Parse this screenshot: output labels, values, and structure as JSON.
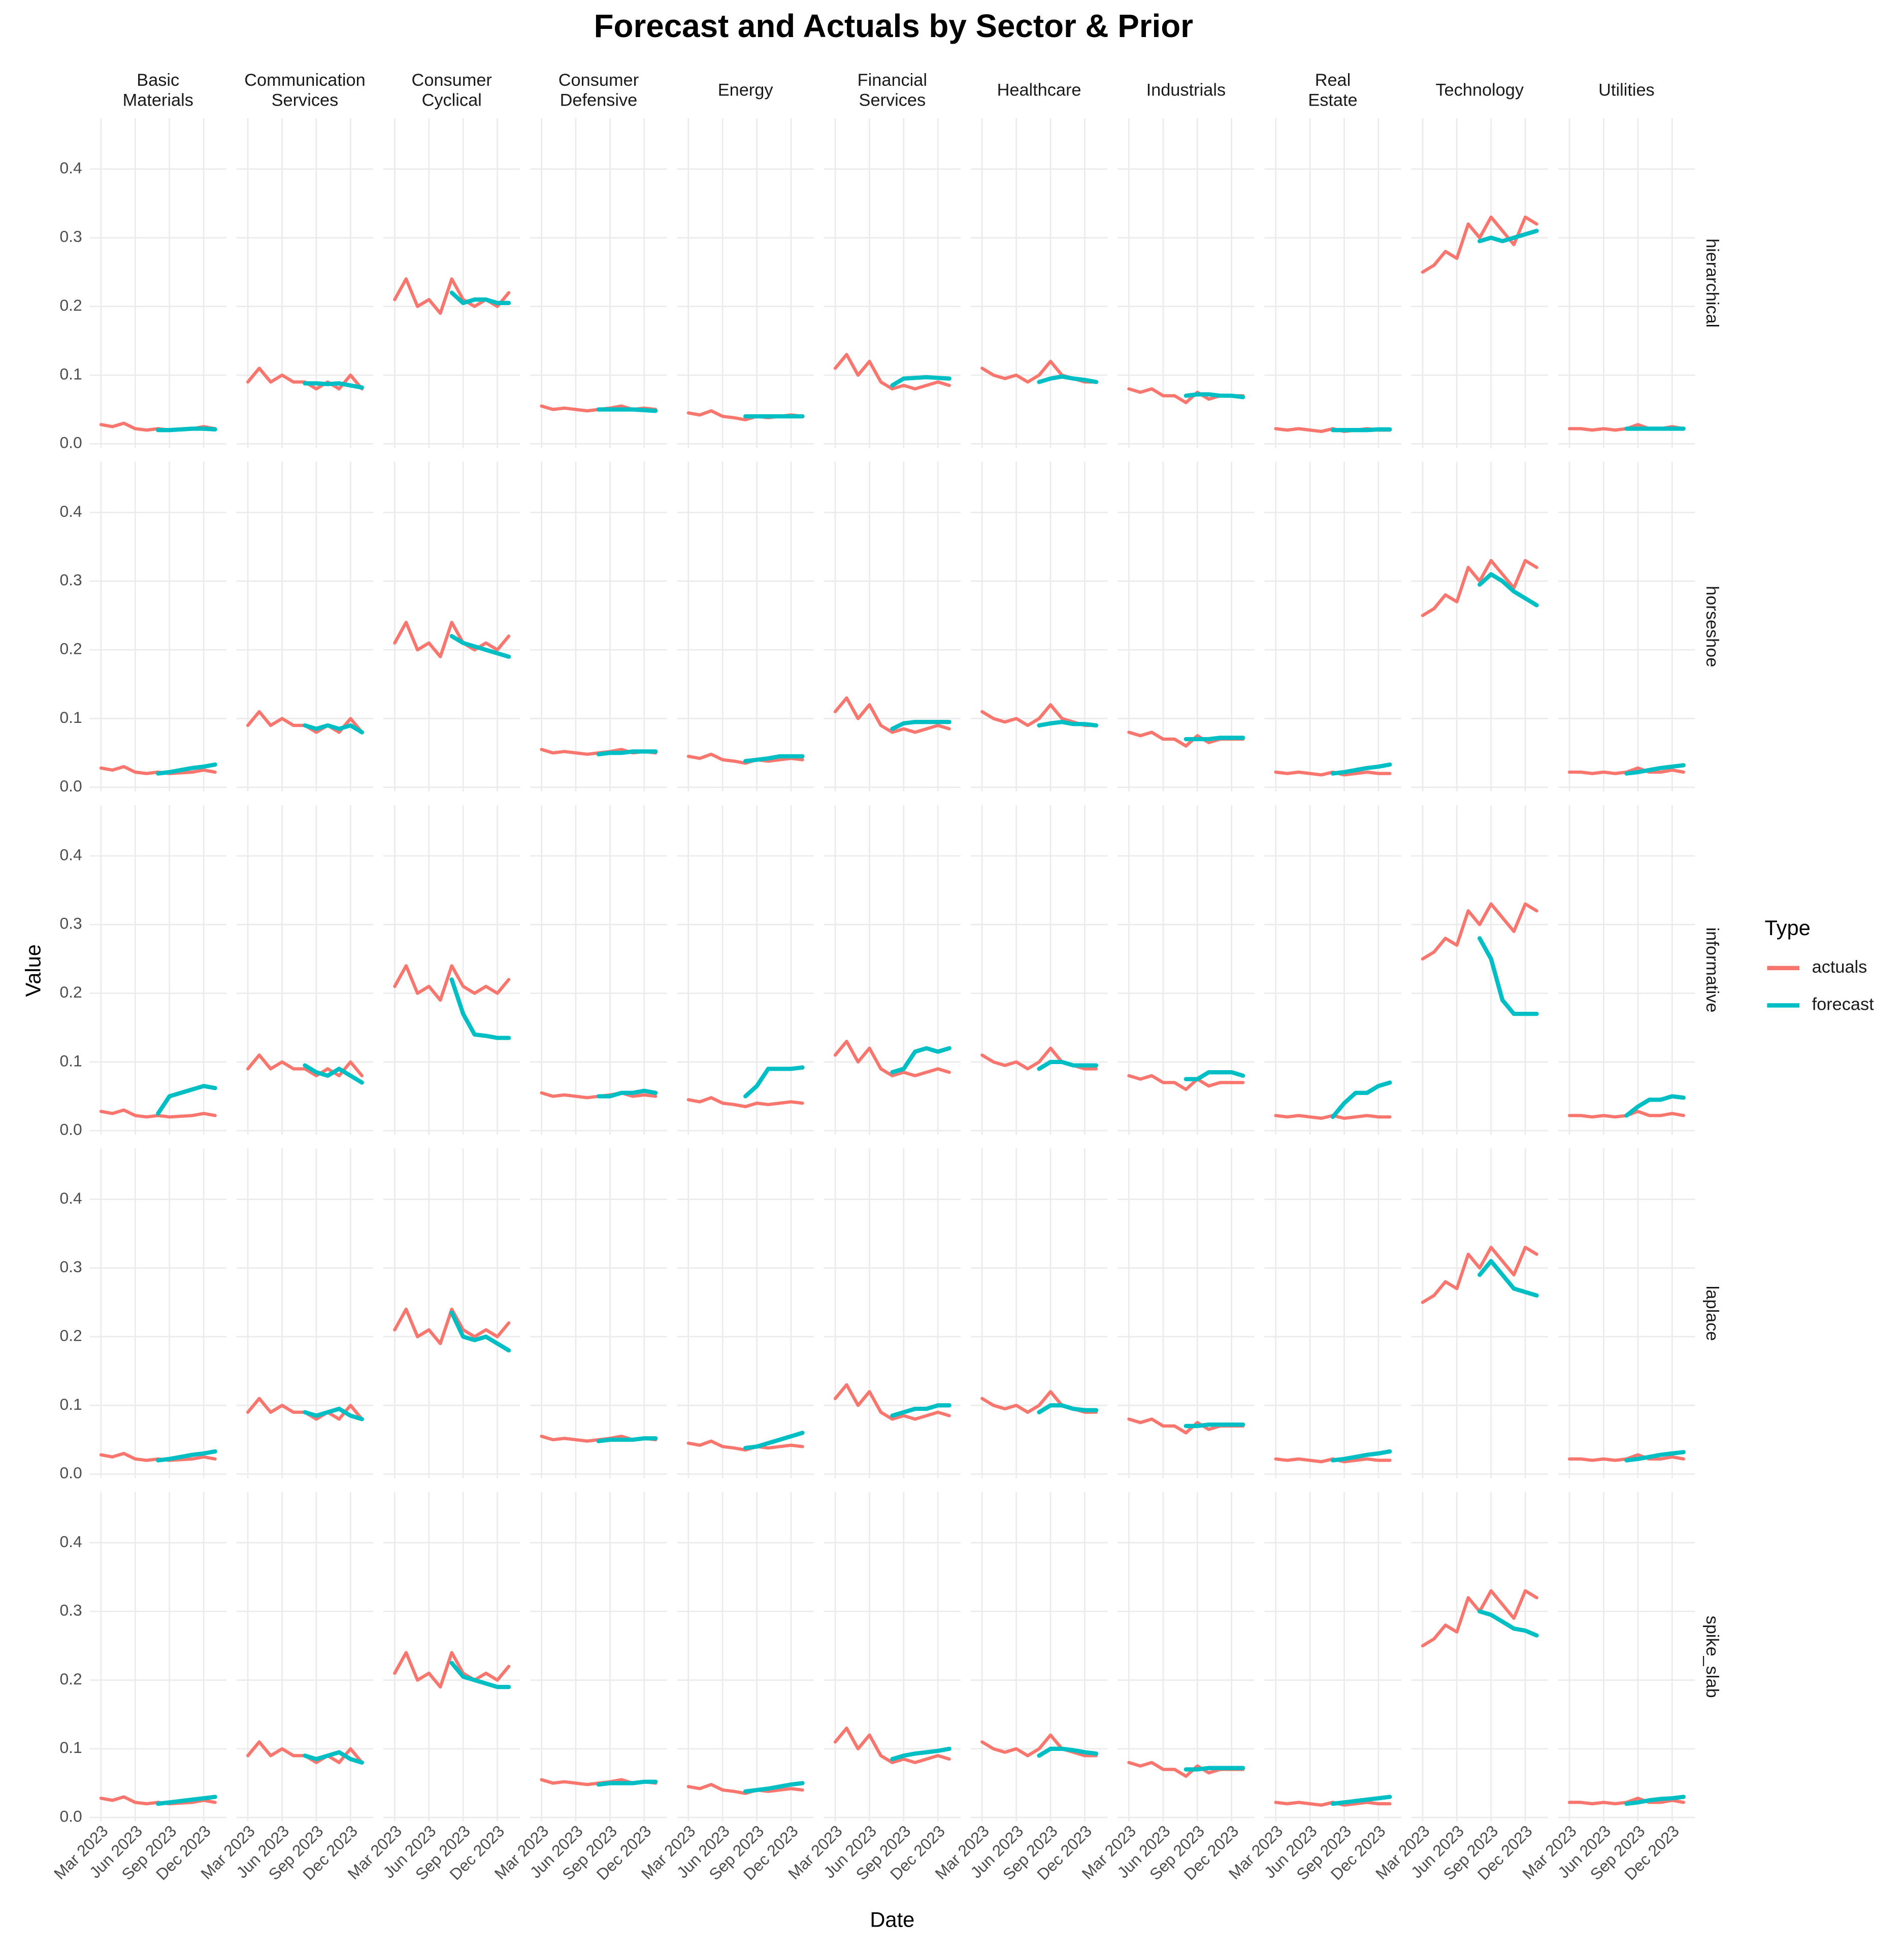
{
  "chart_data": {
    "type": "line",
    "title": "Forecast and Actuals by Sector & Prior",
    "xlabel": "Date",
    "ylabel": "Value",
    "legend_title": "Type",
    "legend": "right",
    "grid": true,
    "columns": [
      "Basic\nMaterials",
      "Communication\nServices",
      "Consumer\nCyclical",
      "Consumer\nDefensive",
      "Energy",
      "Financial\nServices",
      "Healthcare",
      "Industrials",
      "Real\nEstate",
      "Technology",
      "Utilities"
    ],
    "rows": [
      "hierarchical",
      "horseshoe",
      "informative",
      "laplace",
      "spike_slab"
    ],
    "xlim": [
      "2023-02",
      "2024-02"
    ],
    "xticks": [
      {
        "value": "2023-03",
        "label": "Mar 2023"
      },
      {
        "value": "2023-06",
        "label": "Jun 2023"
      },
      {
        "value": "2023-09",
        "label": "Sep 2023"
      },
      {
        "value": "2023-12",
        "label": "Dec 2023"
      }
    ],
    "ylim": [
      -0.006,
      0.474
    ],
    "yticks": [
      {
        "value": 0,
        "label": "0.0"
      },
      0.1,
      0.2,
      0.3,
      0.4
    ],
    "series": [
      {
        "name": "actuals",
        "color": "#F8766D",
        "x": [
          "2023-03",
          "2023-04",
          "2023-05",
          "2023-06",
          "2023-07",
          "2023-08",
          "2023-09",
          "2023-10",
          "2023-11",
          "2023-12",
          "2024-01"
        ],
        "values": [
          [
            0.028,
            0.025,
            0.03,
            0.022,
            0.02,
            0.022,
            0.02,
            0.021,
            0.022,
            0.025,
            0.022
          ],
          [
            0.09,
            0.11,
            0.09,
            0.1,
            0.09,
            0.09,
            0.08,
            0.09,
            0.08,
            0.1,
            0.08
          ],
          [
            0.21,
            0.24,
            0.2,
            0.21,
            0.19,
            0.24,
            0.21,
            0.2,
            0.21,
            0.2,
            0.22
          ],
          [
            0.055,
            0.05,
            0.052,
            0.05,
            0.048,
            0.05,
            0.052,
            0.055,
            0.05,
            0.052,
            0.05
          ],
          [
            0.045,
            0.042,
            0.048,
            0.04,
            0.038,
            0.035,
            0.04,
            0.038,
            0.04,
            0.042,
            0.04
          ],
          [
            0.11,
            0.13,
            0.1,
            0.12,
            0.09,
            0.08,
            0.085,
            0.08,
            0.085,
            0.09,
            0.085
          ],
          [
            0.11,
            0.1,
            0.095,
            0.1,
            0.09,
            0.1,
            0.12,
            0.1,
            0.095,
            0.09,
            0.09
          ],
          [
            0.08,
            0.075,
            0.08,
            0.07,
            0.07,
            0.06,
            0.075,
            0.065,
            0.07,
            0.07,
            0.07
          ],
          [
            0.022,
            0.02,
            0.022,
            0.02,
            0.018,
            0.022,
            0.018,
            0.02,
            0.022,
            0.02,
            0.02
          ],
          [
            0.25,
            0.26,
            0.28,
            0.27,
            0.32,
            0.3,
            0.33,
            0.31,
            0.29,
            0.33,
            0.32
          ],
          [
            0.022,
            0.022,
            0.02,
            0.022,
            0.02,
            0.022,
            0.028,
            0.022,
            0.022,
            0.025,
            0.022
          ]
        ]
      },
      {
        "name": "forecast",
        "color": "#00BFC4",
        "x": [
          "2023-08",
          "2023-09",
          "2023-10",
          "2023-11",
          "2023-12",
          "2024-01"
        ],
        "values": [
          [
            [
              0.02,
              0.02,
              0.021,
              0.022,
              0.022,
              0.021
            ],
            [
              0.088,
              0.088,
              0.087,
              0.088,
              0.085,
              0.082
            ],
            [
              0.22,
              0.205,
              0.21,
              0.21,
              0.205,
              0.205
            ],
            [
              0.05,
              0.05,
              0.05,
              0.05,
              0.049,
              0.048
            ],
            [
              0.04,
              0.04,
              0.04,
              0.04,
              0.04,
              0.04
            ],
            [
              0.085,
              0.095,
              0.096,
              0.097,
              0.096,
              0.095
            ],
            [
              0.09,
              0.095,
              0.098,
              0.095,
              0.093,
              0.09
            ],
            [
              0.07,
              0.072,
              0.072,
              0.07,
              0.07,
              0.068
            ],
            [
              0.02,
              0.02,
              0.02,
              0.02,
              0.021,
              0.021
            ],
            [
              0.295,
              0.3,
              0.295,
              0.3,
              0.305,
              0.31
            ],
            [
              0.022,
              0.022,
              0.022,
              0.022,
              0.022,
              0.022
            ]
          ],
          [
            [
              0.02,
              0.022,
              0.025,
              0.028,
              0.03,
              0.033
            ],
            [
              0.09,
              0.085,
              0.09,
              0.085,
              0.09,
              0.08
            ],
            [
              0.22,
              0.21,
              0.205,
              0.2,
              0.195,
              0.19
            ],
            [
              0.048,
              0.05,
              0.05,
              0.052,
              0.052,
              0.052
            ],
            [
              0.038,
              0.04,
              0.042,
              0.045,
              0.045,
              0.045
            ],
            [
              0.085,
              0.093,
              0.095,
              0.095,
              0.095,
              0.095
            ],
            [
              0.09,
              0.093,
              0.095,
              0.092,
              0.092,
              0.09
            ],
            [
              0.07,
              0.07,
              0.07,
              0.072,
              0.072,
              0.072
            ],
            [
              0.02,
              0.022,
              0.025,
              0.028,
              0.03,
              0.033
            ],
            [
              0.295,
              0.31,
              0.3,
              0.285,
              0.275,
              0.265
            ],
            [
              0.02,
              0.022,
              0.025,
              0.028,
              0.03,
              0.032
            ]
          ],
          [
            [
              0.025,
              0.05,
              0.055,
              0.06,
              0.065,
              0.062
            ],
            [
              0.095,
              0.085,
              0.08,
              0.09,
              0.08,
              0.07
            ],
            [
              0.22,
              0.17,
              0.14,
              0.138,
              0.135,
              0.135
            ],
            [
              0.05,
              0.05,
              0.055,
              0.055,
              0.058,
              0.055
            ],
            [
              0.05,
              0.065,
              0.09,
              0.09,
              0.09,
              0.092
            ],
            [
              0.085,
              0.09,
              0.115,
              0.12,
              0.115,
              0.12
            ],
            [
              0.09,
              0.1,
              0.1,
              0.095,
              0.095,
              0.095
            ],
            [
              0.075,
              0.075,
              0.085,
              0.085,
              0.085,
              0.08
            ],
            [
              0.02,
              0.04,
              0.055,
              0.055,
              0.065,
              0.07
            ],
            [
              0.28,
              0.25,
              0.19,
              0.17,
              0.17,
              0.17
            ],
            [
              0.022,
              0.035,
              0.045,
              0.045,
              0.05,
              0.048
            ]
          ],
          [
            [
              0.02,
              0.022,
              0.025,
              0.028,
              0.03,
              0.033
            ],
            [
              0.09,
              0.085,
              0.09,
              0.095,
              0.085,
              0.08
            ],
            [
              0.235,
              0.2,
              0.195,
              0.2,
              0.19,
              0.18
            ],
            [
              0.048,
              0.05,
              0.05,
              0.05,
              0.052,
              0.052
            ],
            [
              0.038,
              0.04,
              0.045,
              0.05,
              0.055,
              0.06
            ],
            [
              0.085,
              0.09,
              0.095,
              0.095,
              0.1,
              0.1
            ],
            [
              0.09,
              0.1,
              0.1,
              0.095,
              0.093,
              0.093
            ],
            [
              0.07,
              0.07,
              0.072,
              0.072,
              0.072,
              0.072
            ],
            [
              0.02,
              0.022,
              0.025,
              0.028,
              0.03,
              0.033
            ],
            [
              0.29,
              0.31,
              0.29,
              0.27,
              0.265,
              0.26
            ],
            [
              0.02,
              0.022,
              0.025,
              0.028,
              0.03,
              0.032
            ]
          ],
          [
            [
              0.02,
              0.022,
              0.024,
              0.026,
              0.028,
              0.03
            ],
            [
              0.09,
              0.085,
              0.09,
              0.095,
              0.085,
              0.08
            ],
            [
              0.225,
              0.205,
              0.2,
              0.195,
              0.19,
              0.19
            ],
            [
              0.048,
              0.05,
              0.05,
              0.05,
              0.052,
              0.052
            ],
            [
              0.038,
              0.04,
              0.042,
              0.045,
              0.048,
              0.05
            ],
            [
              0.085,
              0.09,
              0.093,
              0.095,
              0.097,
              0.1
            ],
            [
              0.09,
              0.1,
              0.1,
              0.098,
              0.095,
              0.093
            ],
            [
              0.07,
              0.07,
              0.072,
              0.072,
              0.072,
              0.072
            ],
            [
              0.02,
              0.022,
              0.024,
              0.026,
              0.028,
              0.03
            ],
            [
              0.3,
              0.295,
              0.285,
              0.275,
              0.272,
              0.265
            ],
            [
              0.02,
              0.022,
              0.025,
              0.027,
              0.028,
              0.03
            ]
          ]
        ]
      }
    ]
  }
}
